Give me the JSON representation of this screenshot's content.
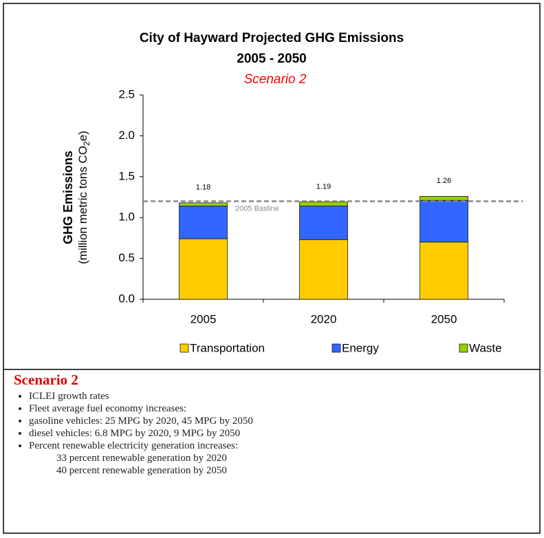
{
  "chart_data": {
    "type": "stacked_bar",
    "title": [
      "City of Hayward Projected GHG Emissions",
      "2005 - 2050"
    ],
    "subtitle": "Scenario 2",
    "y_label": {
      "title": "GHG Emissions",
      "units": "(million metric tons CO",
      "sub": "2",
      "end": "e)"
    },
    "categories": [
      "2005",
      "2020",
      "2050"
    ],
    "series": [
      {
        "name": "Transportation",
        "color": "#ffcc00",
        "values": [
          0.74,
          0.73,
          0.7
        ]
      },
      {
        "name": "Energy",
        "color": "#3366ff",
        "values": [
          0.4,
          0.41,
          0.51
        ]
      },
      {
        "name": "Waste",
        "color": "#99cc00",
        "values": [
          0.04,
          0.05,
          0.05
        ]
      }
    ],
    "totals": [
      1.18,
      1.19,
      1.26
    ],
    "baseline": {
      "value": 1.2,
      "label": "2005 Basline"
    },
    "ylim": [
      0,
      2.5
    ],
    "yticks": [
      {
        "value": 0,
        "label": "0.0"
      },
      {
        "value": 0.5,
        "label": "0.5"
      },
      {
        "value": 1,
        "label": "1.0"
      },
      {
        "value": 1.5,
        "label": "1.5"
      },
      {
        "value": 2,
        "label": "2.0"
      },
      {
        "value": 2.5,
        "label": "2.5"
      }
    ]
  },
  "notes": {
    "heading": "Scenario 2",
    "items": [
      "ICLEI growth rates",
      "Fleet average fuel economy increases:",
      "gasoline vehicles: 25 MPG by 2020, 45 MPG by 2050",
      "diesel vehicles: 6.8 MPG by 2020, 9 MPG by 2050",
      "Percent renewable electricity generation increases:"
    ],
    "sub_items": [
      "33 percent renewable generation by 2020",
      "40 percent renewable generation by 2050"
    ]
  }
}
